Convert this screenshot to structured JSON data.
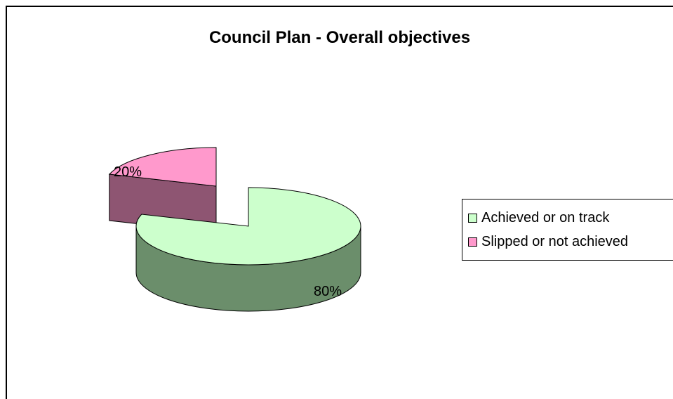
{
  "chart_data": {
    "type": "pie",
    "title": "Council Plan - Overall objectives",
    "categories": [
      "Achieved or on track",
      "Slipped or not achieved"
    ],
    "values": [
      80,
      20
    ],
    "data_labels": [
      "80%",
      "20%"
    ],
    "colors": [
      "#ccffcc",
      "#ff99cc"
    ],
    "side_colors": [
      "#6b8e6b",
      "#8e5572"
    ],
    "exploded": "Slipped or not achieved",
    "legend_position": "right",
    "style": "3d"
  }
}
